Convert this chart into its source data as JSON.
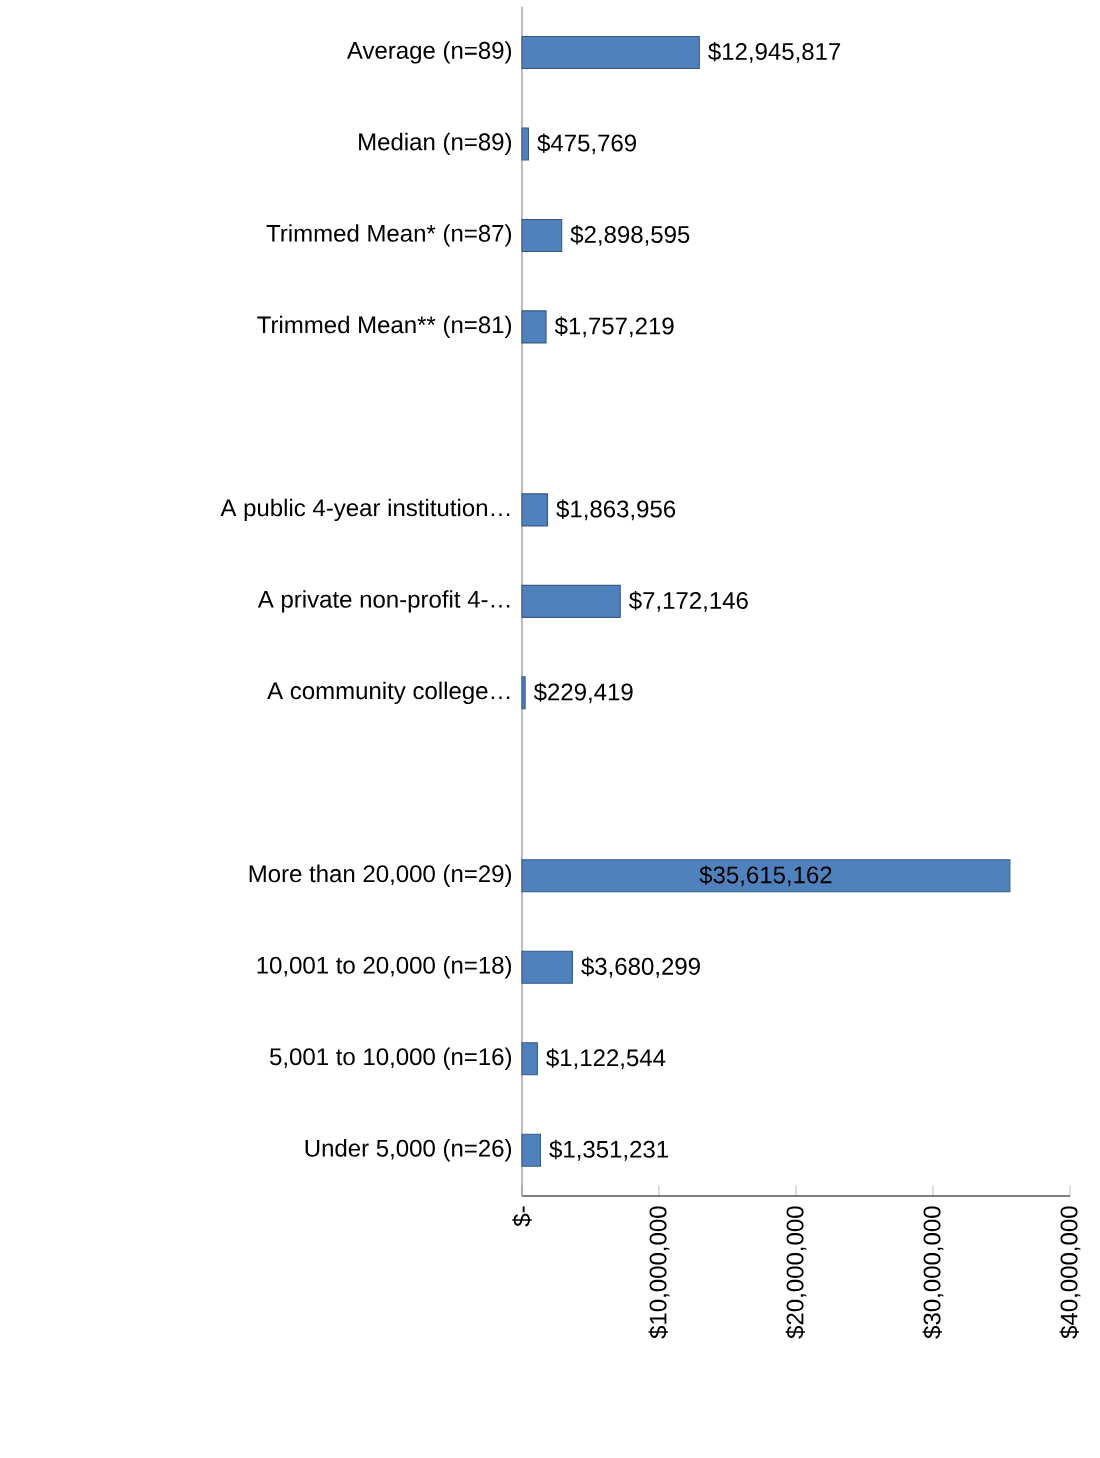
{
  "chart_data": {
    "type": "bar",
    "orientation": "horizontal",
    "categories": [
      "Average (n=89)",
      "Median (n=89)",
      "Trimmed Mean* (n=87)",
      "Trimmed Mean** (n=81)",
      null,
      "A public 4-year institution…",
      "A private non-profit 4-…",
      "A community college…",
      null,
      "More than 20,000 (n=29)",
      "10,001 to 20,000 (n=18)",
      "5,001 to 10,000 (n=16)",
      "Under 5,000 (n=26)"
    ],
    "values": [
      12945817,
      475769,
      2898595,
      1757219,
      null,
      1863956,
      7172146,
      229419,
      null,
      35615162,
      3680299,
      1122544,
      1351231
    ],
    "value_labels": [
      "$12,945,817",
      "$475,769",
      "$2,898,595",
      "$1,757,219",
      null,
      "$1,863,956",
      "$7,172,146",
      "$229,419",
      null,
      "$35,615,162",
      "$3,680,299",
      "$1,122,544",
      "$1,351,231"
    ],
    "color": "#4f81bd",
    "xlim": [
      0,
      40000000
    ],
    "xticks": [
      {
        "value": 0,
        "label": "$-"
      },
      {
        "value": 10000000,
        "label": "$10,000,000"
      },
      {
        "value": 20000000,
        "label": "$20,000,000"
      },
      {
        "value": 30000000,
        "label": "$30,000,000"
      },
      {
        "value": 40000000,
        "label": "$40,000,000"
      }
    ],
    "grid": false
  }
}
